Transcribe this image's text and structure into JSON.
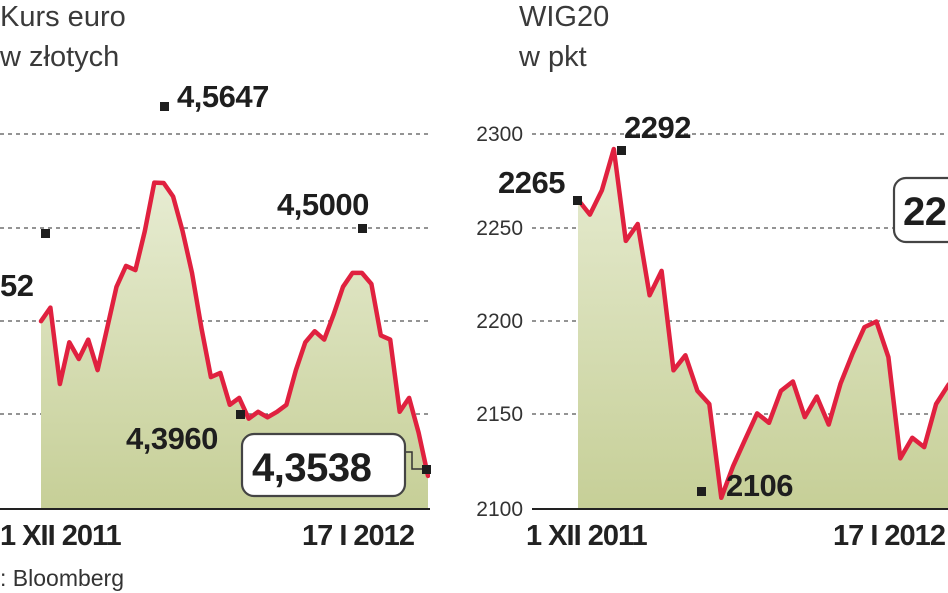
{
  "source": "Bloomberg",
  "chart_data": [
    {
      "type": "line",
      "title": "Kurs euro",
      "subtitle": "w złotych",
      "ylim": [
        4.33,
        4.6
      ],
      "x_tick_labels": [
        "1 XII 2011",
        "17 I 2012"
      ],
      "grid": "horizontal-dashed",
      "series": [
        {
          "values": [
            4.4652,
            4.475,
            4.42,
            4.45,
            4.438,
            4.452,
            4.43,
            4.46,
            4.49,
            4.505,
            4.502,
            4.53,
            4.565,
            4.5647,
            4.555,
            4.53,
            4.5,
            4.46,
            4.425,
            4.428,
            4.405,
            4.41,
            4.395,
            4.4,
            4.396,
            4.4,
            4.405,
            4.43,
            4.45,
            4.458,
            4.452,
            4.47,
            4.49,
            4.5,
            4.5,
            4.492,
            4.455,
            4.452,
            4.4,
            4.41,
            4.385,
            4.3538
          ]
        }
      ],
      "annotations": [
        {
          "label": "4,5647"
        },
        {
          "label": "4,5000"
        },
        {
          "label": "4,3960"
        },
        {
          "label": "4,3538"
        },
        {
          "label": "52"
        }
      ]
    },
    {
      "type": "line",
      "title": "WIG20",
      "subtitle": "w pkt",
      "ylim": [
        2100,
        2300
      ],
      "y_ticks": [
        "2300",
        "2250",
        "2200",
        "2150",
        "2100"
      ],
      "x_tick_labels": [
        "1 XII 2011",
        "17 I 2012"
      ],
      "grid": "horizontal-dashed",
      "series": [
        {
          "values": [
            2265,
            2257,
            2270,
            2292,
            2243,
            2252,
            2214,
            2227,
            2174,
            2182,
            2163,
            2156,
            2106,
            2123,
            2137,
            2151,
            2146,
            2163,
            2168,
            2149,
            2160,
            2145,
            2167,
            2183,
            2197,
            2200,
            2181,
            2127,
            2138,
            2133,
            2156,
            2166,
            2173
          ]
        }
      ],
      "annotations": [
        {
          "label": "2265"
        },
        {
          "label": "2292"
        },
        {
          "label": "2106"
        },
        {
          "label": "22"
        }
      ]
    }
  ]
}
